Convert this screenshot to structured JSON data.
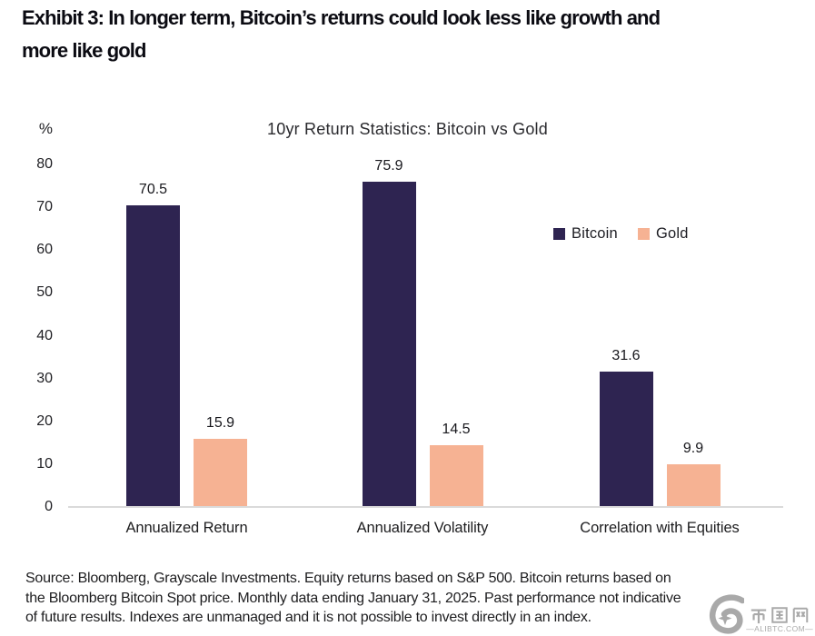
{
  "exhibit_title": {
    "lines": [
      "Exhibit 3: In longer term, Bitcoin’s returns could look less like growth and",
      "more like gold"
    ]
  },
  "chart_data": {
    "type": "bar",
    "title": "10yr Return Statistics: Bitcoin vs Gold",
    "unit_label": "%",
    "categories": [
      "Annualized Return",
      "Annualized Volatility",
      "Correlation with Equities"
    ],
    "series": [
      {
        "name": "Bitcoin",
        "color": "#2e2451",
        "values": [
          70.5,
          75.9,
          31.6
        ]
      },
      {
        "name": "Gold",
        "color": "#f6b293",
        "values": [
          15.9,
          14.5,
          9.9
        ]
      }
    ],
    "ylim": [
      0,
      80
    ],
    "ytick_step": 10,
    "value_labels": true,
    "grid": false,
    "legend_position": "inside-right",
    "axis_line_color": "#dadada"
  },
  "source_note": {
    "lines": [
      "Source: Bloomberg, Grayscale Investments. Equity returns based on S&P 500. Bitcoin returns based on",
      "the Bloomberg Bitcoin Spot price. Monthly data ending January 31, 2025. Past performance not indicative",
      "of future results. Indexes are unmanaged and it is not possible to invest directly in an index."
    ]
  },
  "watermark": {
    "brand": "币圈网",
    "domain": "ALIBTC.COM",
    "domain_display": "—ALIBTC.COM—",
    "color": "#9b9b9b"
  }
}
